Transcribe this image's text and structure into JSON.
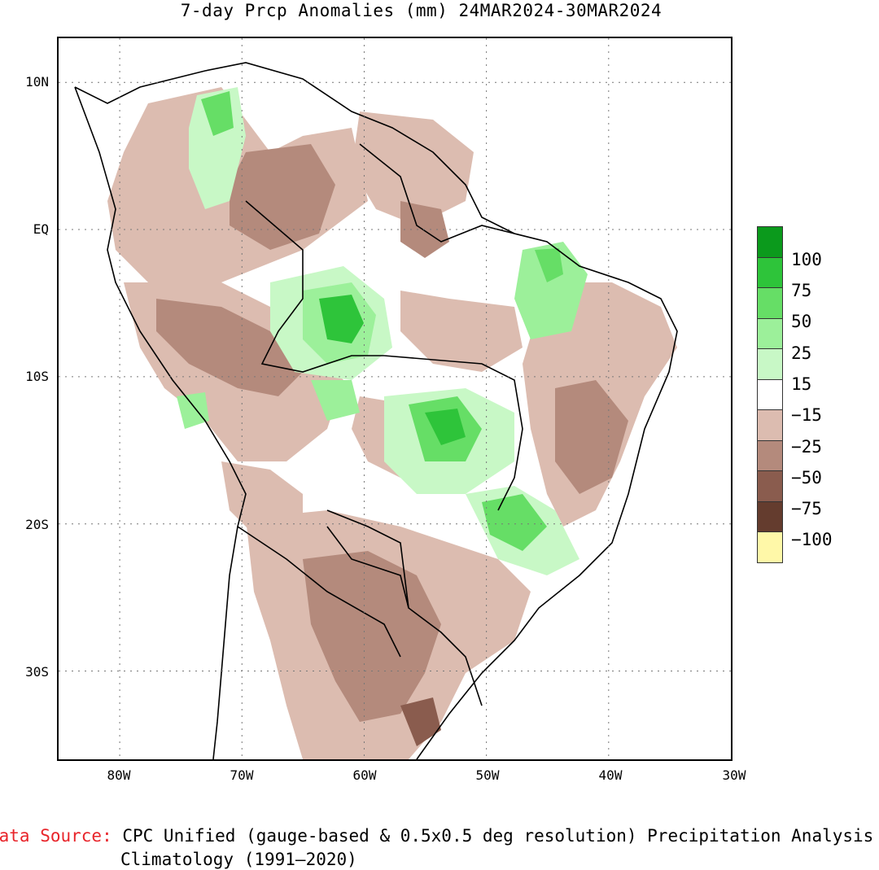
{
  "title": "7-day Prcp Anomalies (mm) 24MAR2024-30MAR2024",
  "axes": {
    "y_labels": [
      "10N",
      "EQ",
      "10S",
      "20S",
      "30S"
    ],
    "x_labels": [
      "80W",
      "70W",
      "60W",
      "50W",
      "40W",
      "30W"
    ]
  },
  "map_data": {
    "projection": "lat-lon",
    "lon_range": [
      -85,
      -30
    ],
    "lat_range": [
      -36,
      13
    ],
    "grid": true
  },
  "legend": {
    "labels": [
      "100",
      "75",
      "50",
      "25",
      "15",
      "−15",
      "−25",
      "−50",
      "−75",
      "−100"
    ],
    "colors": [
      "#0b9a1c",
      "#2ec43a",
      "#66de66",
      "#9cf09a",
      "#c8f8c6",
      "#ffffff",
      "#dcbcb0",
      "#b48a7c",
      "#8a5c4e",
      "#643c2e",
      "#fff8a8"
    ]
  },
  "source": {
    "key": "Data Source:",
    "text": " CPC Unified (gauge-based & 0.5x0.5 deg resolution) Precipitation Analysis",
    "climatology": "Climatology (1991–2020)"
  }
}
